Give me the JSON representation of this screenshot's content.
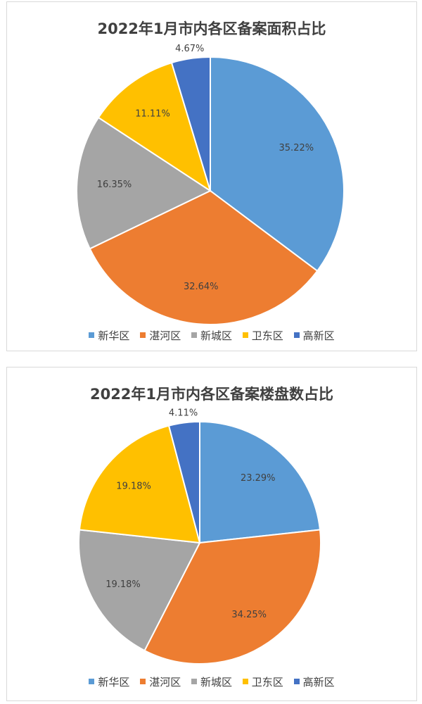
{
  "chart_data": [
    {
      "type": "pie",
      "title": "2022年1月市内各区备案面积占比",
      "categories": [
        "新华区",
        "湛河区",
        "新城区",
        "卫东区",
        "高新区"
      ],
      "values": [
        35.22,
        32.64,
        16.35,
        11.11,
        4.67
      ],
      "labels": [
        "35.22%",
        "32.64%",
        "16.35%",
        "11.11%",
        "4.67%"
      ],
      "colors": [
        "#5b9bd5",
        "#ed7d31",
        "#a5a5a5",
        "#ffc000",
        "#4472c4"
      ],
      "legend_position": "bottom"
    },
    {
      "type": "pie",
      "title": "2022年1月市内各区备案楼盘数占比",
      "categories": [
        "新华区",
        "湛河区",
        "新城区",
        "卫东区",
        "高新区"
      ],
      "values": [
        23.29,
        34.25,
        19.18,
        19.18,
        4.11
      ],
      "labels": [
        "23.29%",
        "34.25%",
        "19.18%",
        "19.18%",
        "4.11%"
      ],
      "colors": [
        "#5b9bd5",
        "#ed7d31",
        "#a5a5a5",
        "#ffc000",
        "#4472c4"
      ],
      "legend_position": "bottom"
    }
  ]
}
